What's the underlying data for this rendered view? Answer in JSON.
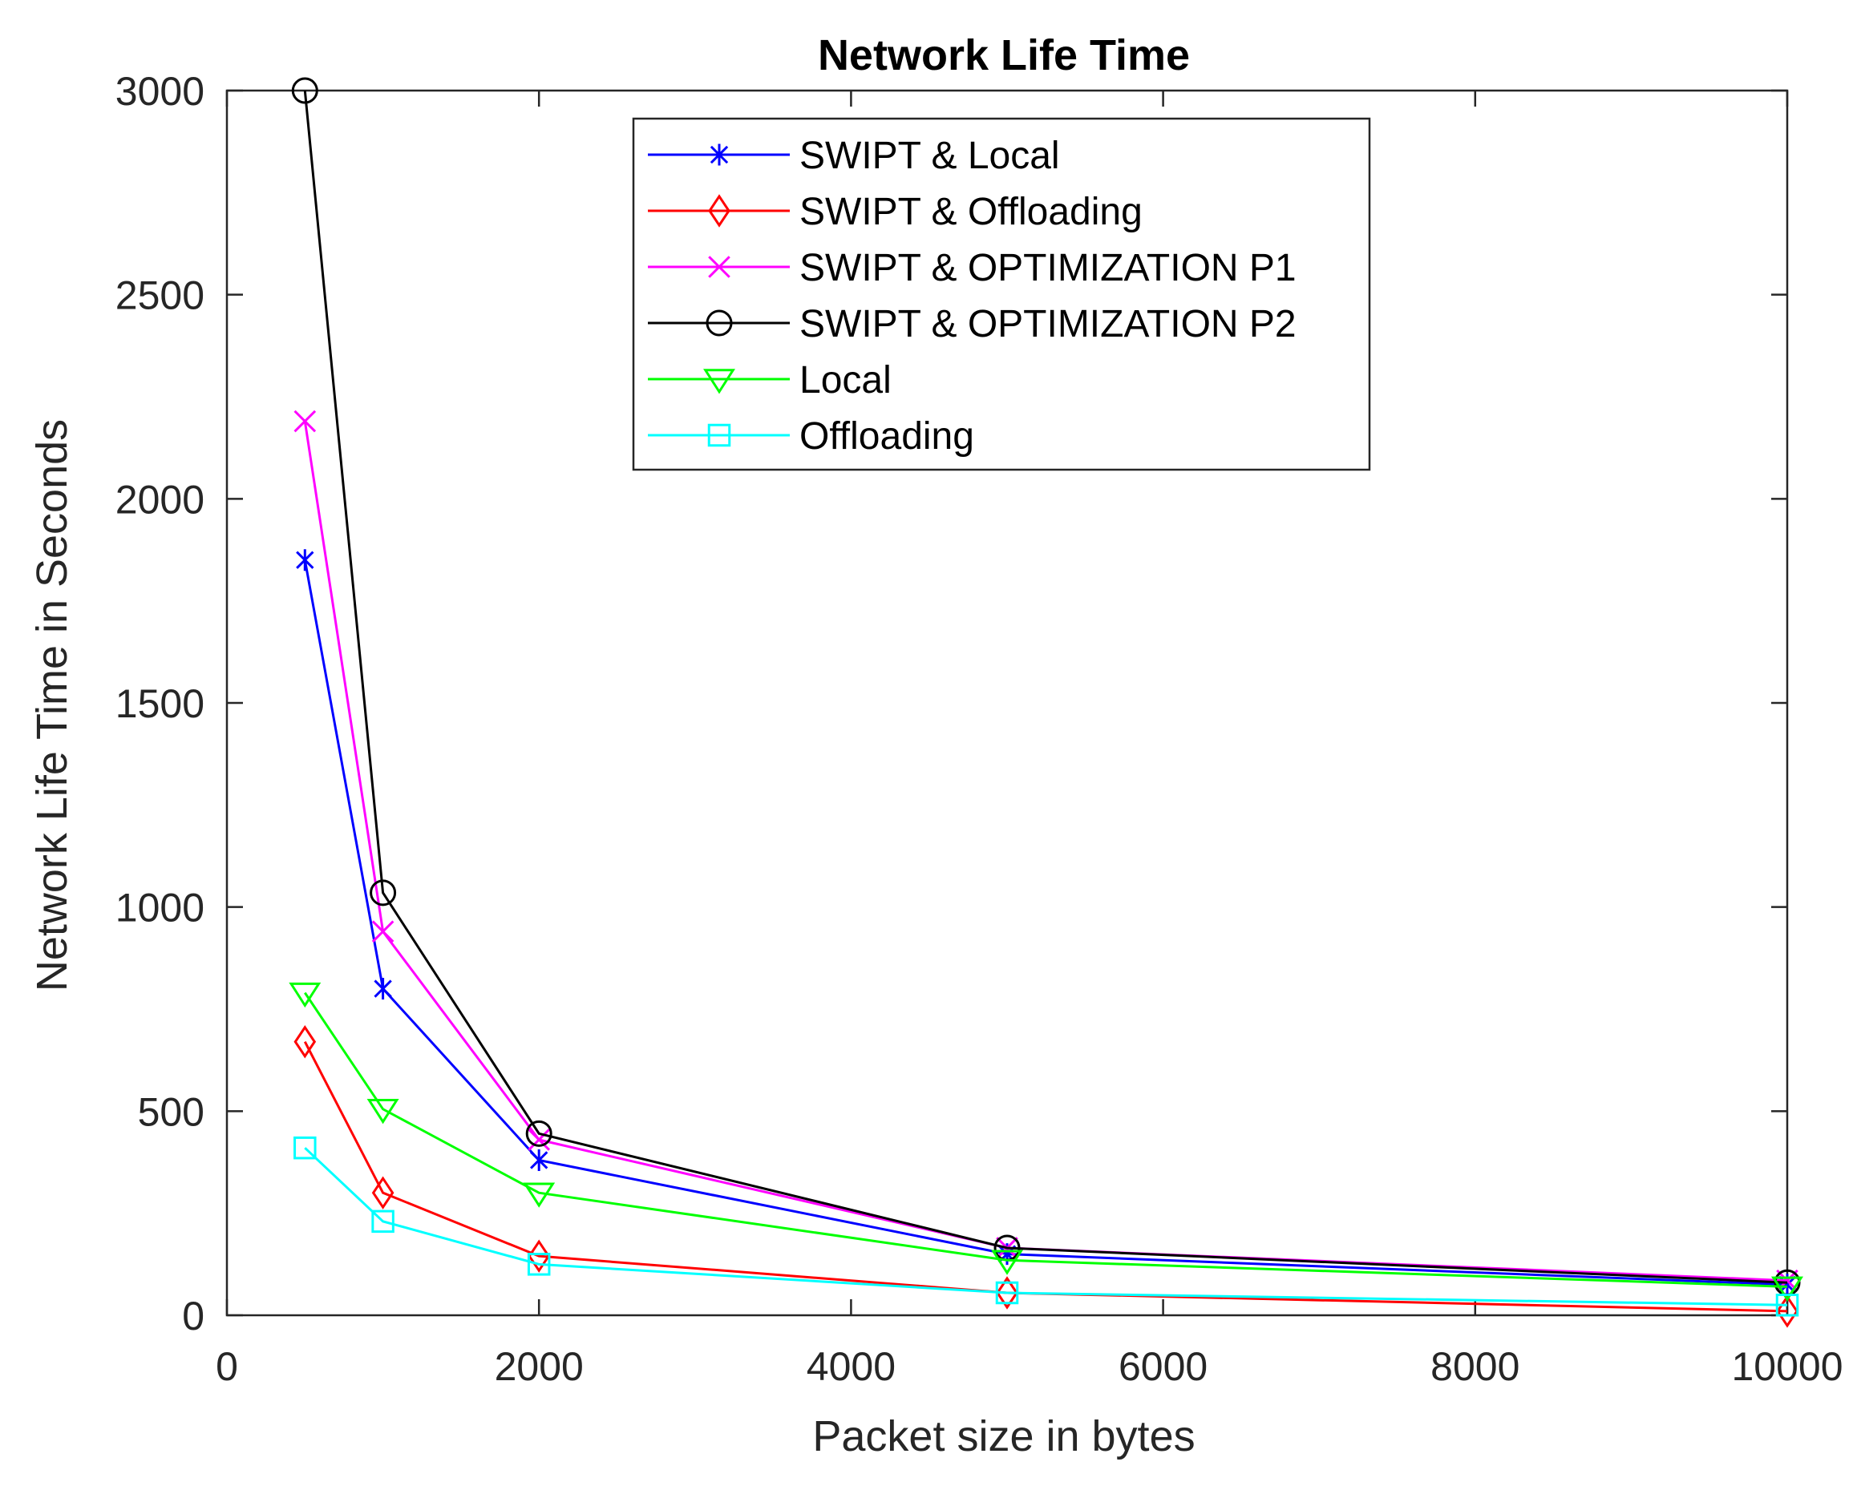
{
  "chart_data": {
    "type": "line",
    "title": "Network Life Time",
    "xlabel": "Packet size in bytes",
    "ylabel": "Network Life Time in Seconds",
    "xlim": [
      0,
      10000
    ],
    "ylim": [
      0,
      3000
    ],
    "xticks": [
      0,
      2000,
      4000,
      6000,
      8000,
      10000
    ],
    "yticks": [
      0,
      500,
      1000,
      1500,
      2000,
      2500,
      3000
    ],
    "xtick_labels": [
      "0",
      "2000",
      "4000",
      "6000",
      "8000",
      "10000"
    ],
    "ytick_labels": [
      "0",
      "500",
      "1000",
      "1500",
      "2000",
      "2500",
      "3000"
    ],
    "grid": false,
    "legend_position": "top-center",
    "x": [
      500,
      1000,
      2000,
      5000,
      10000
    ],
    "series": [
      {
        "name": "SWIPT & Local",
        "marker": "asterisk",
        "color": "#0000ff",
        "values": [
          1850,
          800,
          380,
          150,
          75
        ]
      },
      {
        "name": "SWIPT & Offloading",
        "marker": "diamond",
        "color": "#ff0000",
        "values": [
          670,
          300,
          145,
          55,
          10
        ]
      },
      {
        "name": "SWIPT & OPTIMIZATION P1",
        "marker": "x",
        "color": "#ff00ff",
        "values": [
          2190,
          940,
          430,
          165,
          85
        ]
      },
      {
        "name": "SWIPT & OPTIMIZATION P2",
        "marker": "circle",
        "color": "#000000",
        "values": [
          3000,
          1035,
          445,
          165,
          80
        ]
      },
      {
        "name": "Local",
        "marker": "triangle-down",
        "color": "#00ff00",
        "values": [
          790,
          505,
          300,
          135,
          70
        ]
      },
      {
        "name": "Offloading",
        "marker": "square",
        "color": "#00ffff",
        "values": [
          410,
          230,
          125,
          55,
          25
        ]
      }
    ]
  }
}
